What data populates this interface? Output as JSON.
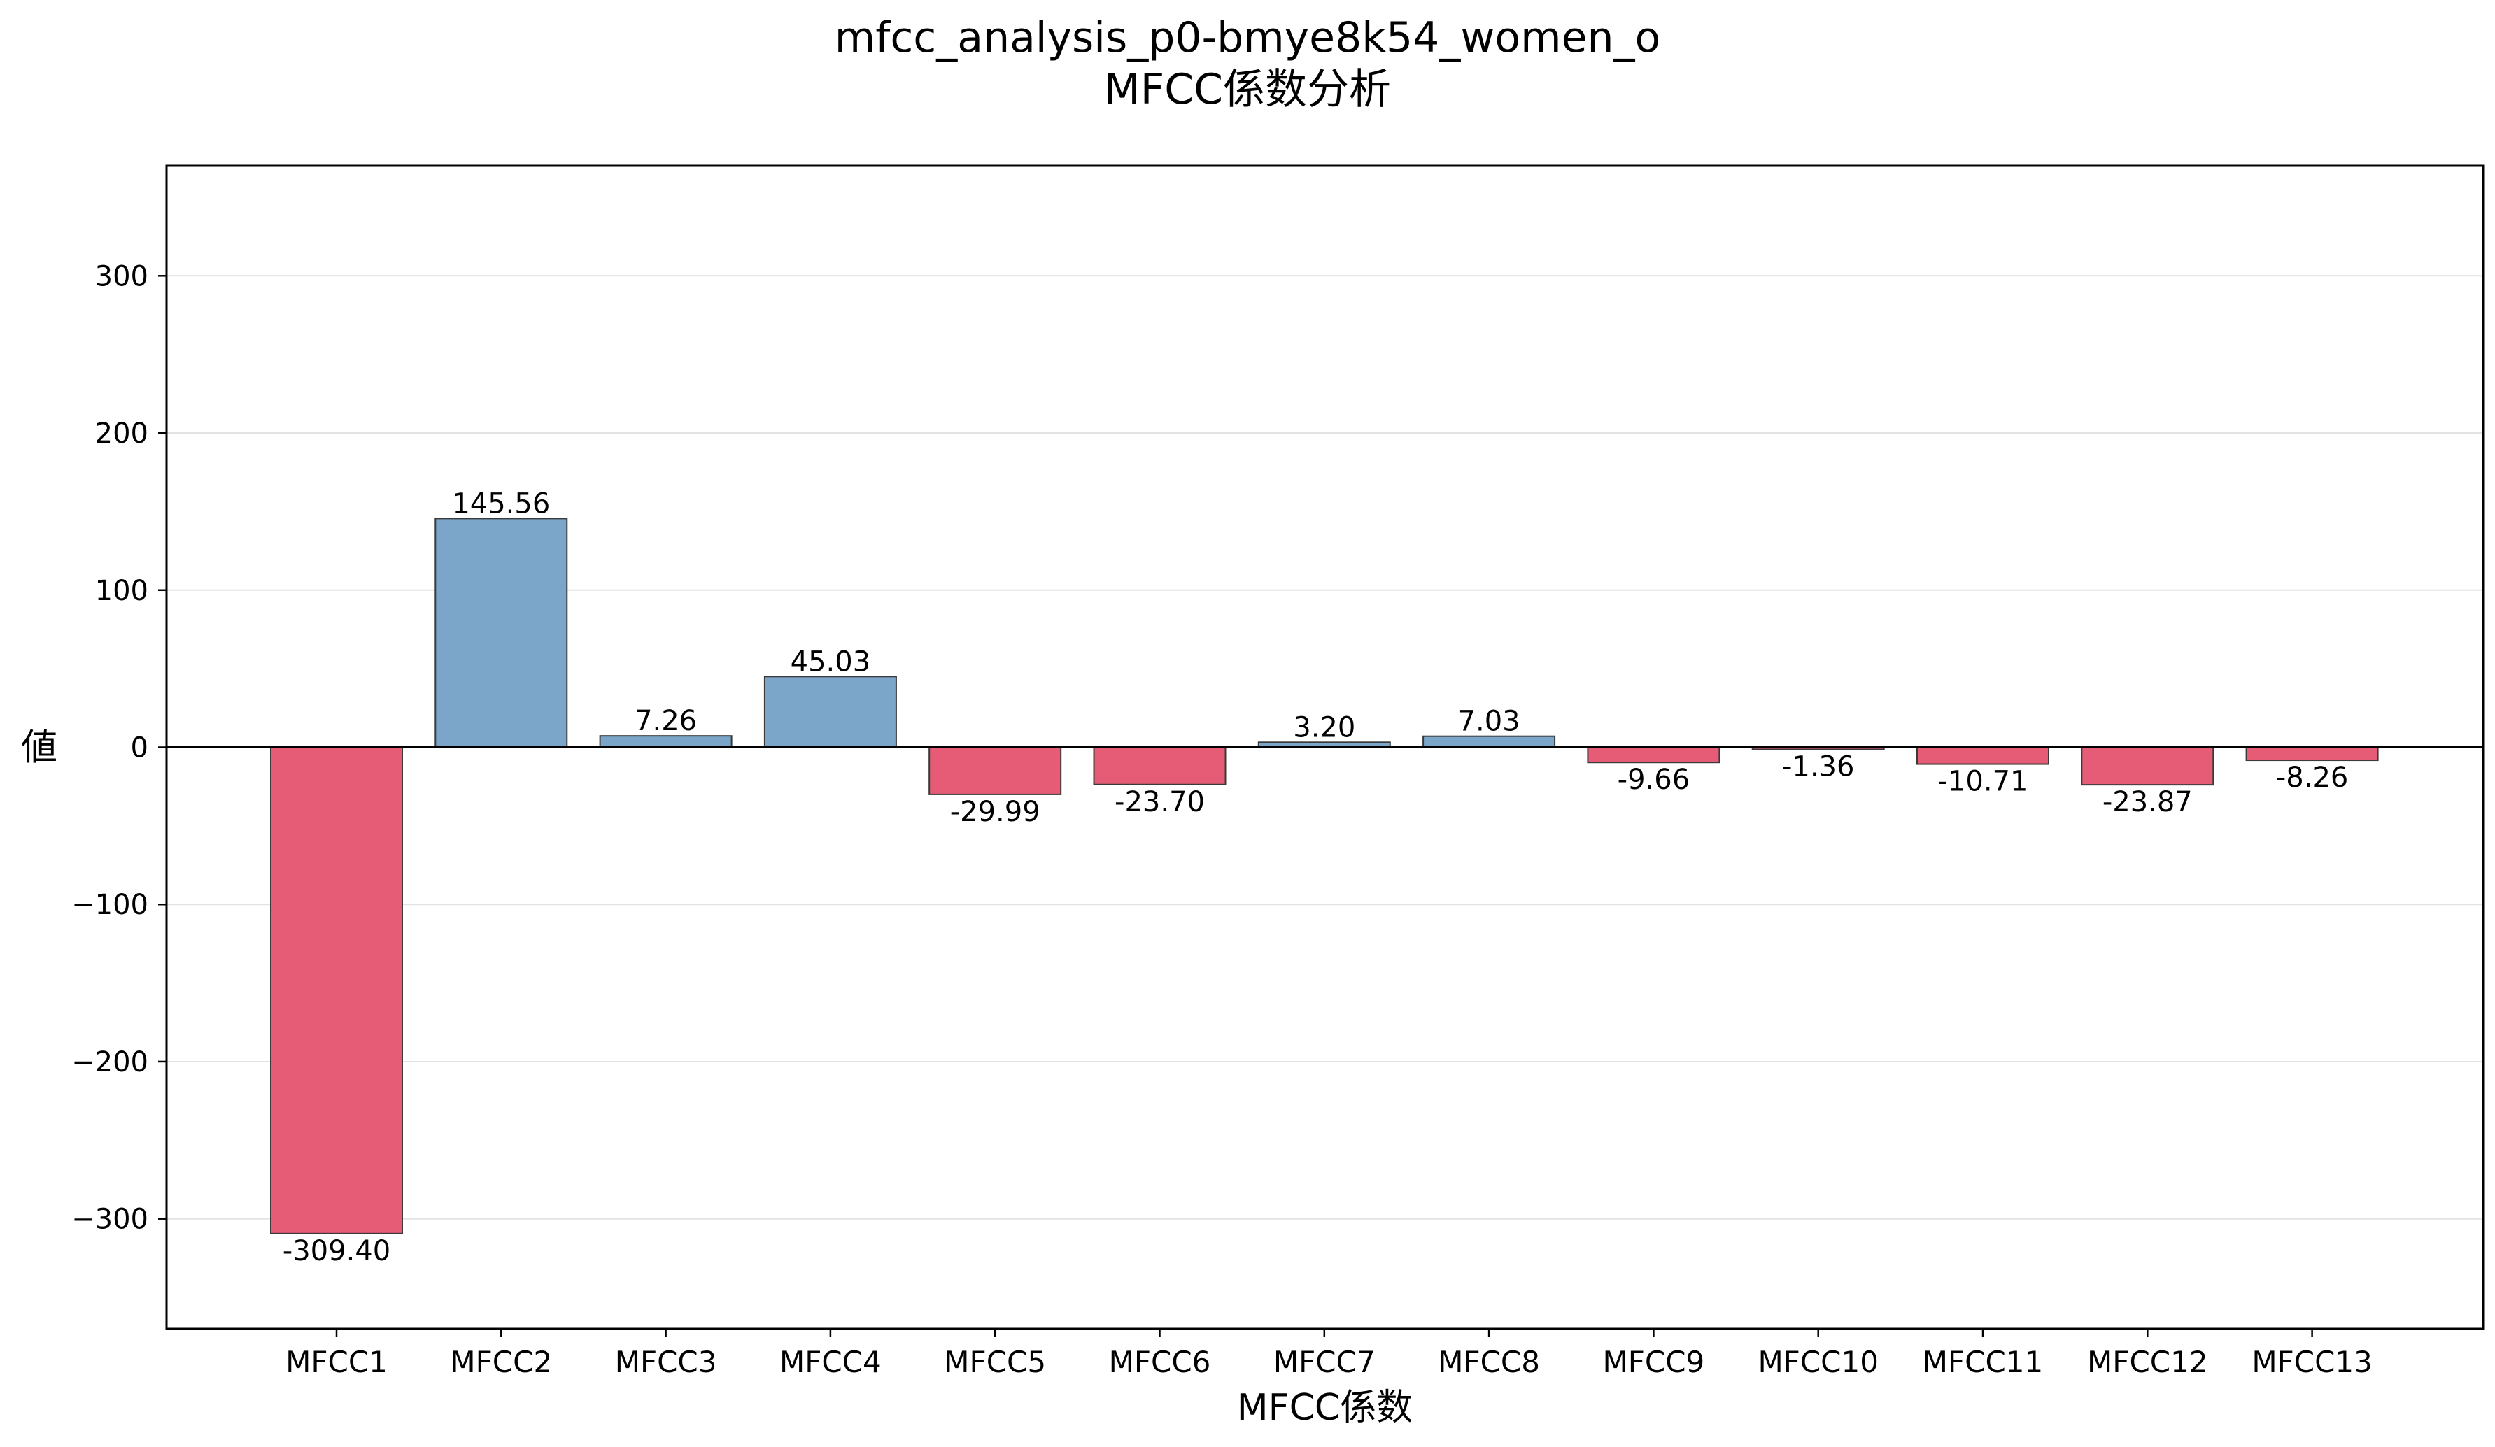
{
  "chart_data": {
    "type": "bar",
    "title": "mfcc_analysis_p0-bmye8k54_women_o",
    "subtitle": "MFCC係数分析",
    "xlabel": "MFCC係数",
    "ylabel": "値",
    "ylim": [
      -370,
      370
    ],
    "yticks": [
      300,
      200,
      100,
      0,
      -100,
      -200,
      -300
    ],
    "ytick_labels": [
      "300",
      "200",
      "100",
      "0",
      "−100",
      "−200",
      "−300"
    ],
    "grid": "horizontal",
    "categories": [
      "MFCC1",
      "MFCC2",
      "MFCC3",
      "MFCC4",
      "MFCC5",
      "MFCC6",
      "MFCC7",
      "MFCC8",
      "MFCC9",
      "MFCC10",
      "MFCC11",
      "MFCC12",
      "MFCC13"
    ],
    "values": [
      -309.4,
      145.56,
      7.26,
      45.03,
      -29.99,
      -23.7,
      3.2,
      7.03,
      -9.66,
      -1.36,
      -10.71,
      -23.87,
      -8.26
    ],
    "value_labels": [
      "-309.40",
      "145.56",
      "7.26",
      "45.03",
      "-29.99",
      "-23.70",
      "3.20",
      "7.03",
      "-9.66",
      "-1.36",
      "-10.71",
      "-23.87",
      "-8.26"
    ],
    "colors": {
      "positive": "#7ba6c9",
      "negative": "#e65c77",
      "edge": "#3a3a3a",
      "grid": "#e3e3e3",
      "zero_line": "#000000"
    }
  }
}
